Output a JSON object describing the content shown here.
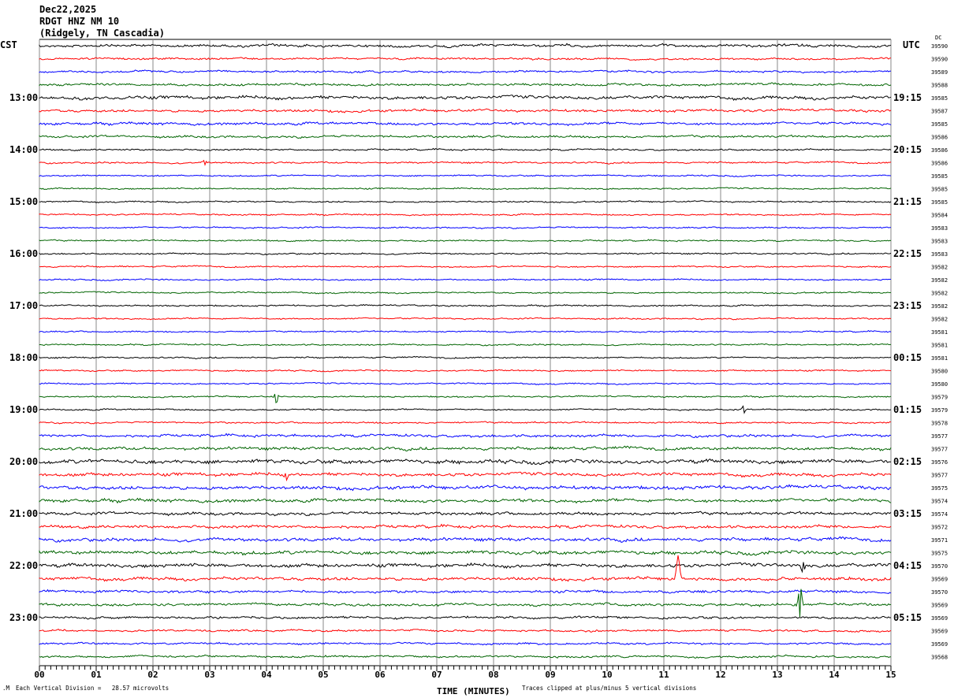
{
  "chart_data": {
    "type": "line",
    "title_lines": [
      "Dec22,2025",
      "RDGT HNZ NM 10",
      "(Ridgely, TN Cascadia)"
    ],
    "left_axis_label": "CST",
    "right_axis_label": "UTC",
    "dc_header": "DC",
    "left_hour_labels": [
      "13:00",
      "14:00",
      "15:00",
      "16:00",
      "17:00",
      "18:00",
      "19:00",
      "20:00",
      "21:00",
      "22:00",
      "23:00"
    ],
    "right_hour_labels": [
      "19:15",
      "20:15",
      "21:15",
      "22:15",
      "23:15",
      "00:15",
      "01:15",
      "02:15",
      "03:15",
      "04:15",
      "05:15"
    ],
    "rows_per_hour": 4,
    "trace_count": 48,
    "trace_colors": [
      "#000000",
      "#ff0000",
      "#0000ff",
      "#006400"
    ],
    "dc_values": [
      39590,
      39590,
      39589,
      39588,
      39585,
      39587,
      39585,
      39586,
      39586,
      39586,
      39585,
      39585,
      39585,
      39584,
      39583,
      39583,
      39583,
      39582,
      39582,
      39582,
      39582,
      39582,
      39581,
      39581,
      39581,
      39580,
      39580,
      39579,
      39579,
      39578,
      39577,
      39577,
      39576,
      39577,
      39575,
      39574,
      39574,
      39572,
      39571,
      39575,
      39570,
      39569,
      39570,
      39569,
      39569,
      39569,
      39569,
      39568
    ],
    "noise_level": [
      1.6,
      1.2,
      1.2,
      1.4,
      2.0,
      1.6,
      1.6,
      1.4,
      1.0,
      1.0,
      0.9,
      0.9,
      0.9,
      0.9,
      0.9,
      0.9,
      0.9,
      0.9,
      0.9,
      0.9,
      0.9,
      0.9,
      0.9,
      0.9,
      0.9,
      0.9,
      0.9,
      0.9,
      0.9,
      1.0,
      1.6,
      1.8,
      2.4,
      2.0,
      2.2,
      2.0,
      1.8,
      1.8,
      2.0,
      2.2,
      2.2,
      2.0,
      1.6,
      1.6,
      1.4,
      1.2,
      1.2,
      1.2
    ],
    "events": [
      {
        "row": 27,
        "minute": 4.17,
        "amp": 8
      },
      {
        "row": 28,
        "minute": 12.4,
        "amp": 6
      },
      {
        "row": 41,
        "minute": 11.25,
        "amp": -28
      },
      {
        "row": 43,
        "minute": 13.4,
        "amp": -26
      },
      {
        "row": 40,
        "minute": 13.45,
        "amp": 8
      },
      {
        "row": 33,
        "minute": 4.35,
        "amp": 6
      },
      {
        "row": 9,
        "minute": 2.9,
        "amp": 4
      }
    ],
    "x_axis": {
      "label": "TIME (MINUTES)",
      "min": 0,
      "max": 15,
      "ticks": [
        "00",
        "01",
        "02",
        "03",
        "04",
        "05",
        "06",
        "07",
        "08",
        "09",
        "10",
        "11",
        "12",
        "13",
        "14",
        "15"
      ]
    },
    "footer_left": "Each Vertical Division =   28.57 microvolts",
    "footer_right": "Traces clipped at plus/minus 5 vertical divisions"
  }
}
